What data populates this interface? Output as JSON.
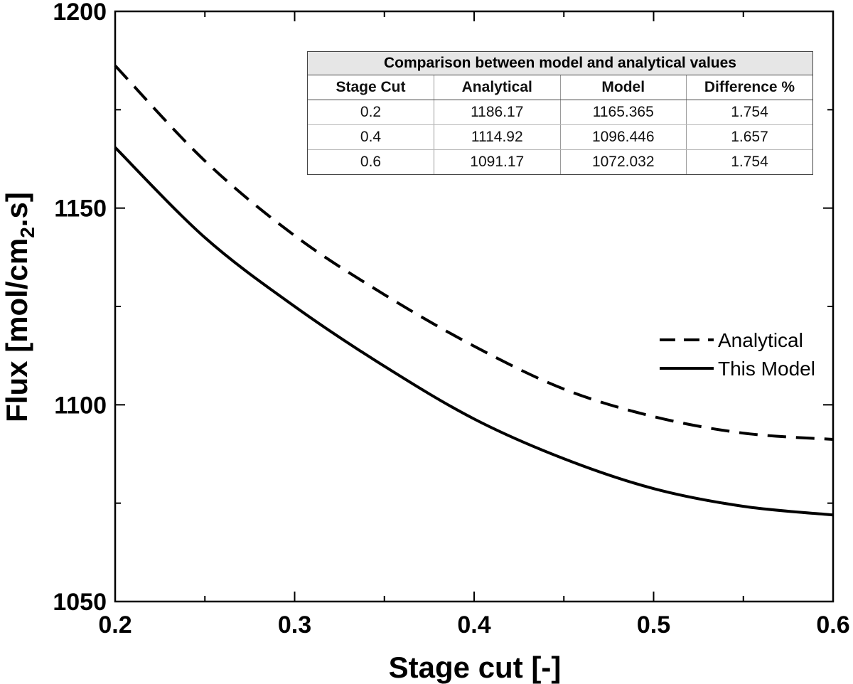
{
  "chart_data": {
    "type": "line",
    "xlabel": "Stage cut [-]",
    "ylabel": "Flux [mol/cm",
    "ylabel_sub": "2",
    "ylabel_tail": ".s]",
    "xlim": [
      0.2,
      0.6
    ],
    "ylim": [
      1050,
      1200
    ],
    "x_ticks": [
      0.2,
      0.3,
      0.4,
      0.5,
      0.6
    ],
    "x_tick_labels": [
      "0.2",
      "0.3",
      "0.4",
      "0.5",
      "0.6"
    ],
    "y_ticks": [
      1050,
      1100,
      1150,
      1200
    ],
    "y_tick_labels": [
      "1050",
      "1100",
      "1150",
      "1200"
    ],
    "grid": false,
    "legend_position": "right",
    "series": [
      {
        "name": "Analytical",
        "style": "dashed",
        "color": "#000000",
        "x": [
          0.2,
          0.25,
          0.3,
          0.35,
          0.4,
          0.45,
          0.5,
          0.55,
          0.6
        ],
        "y": [
          1186.2,
          1162.0,
          1143.0,
          1128.0,
          1114.9,
          1104.0,
          1097.0,
          1092.8,
          1091.2
        ]
      },
      {
        "name": "This Model",
        "style": "solid",
        "color": "#000000",
        "x": [
          0.2,
          0.25,
          0.3,
          0.35,
          0.4,
          0.45,
          0.5,
          0.55,
          0.6
        ],
        "y": [
          1165.4,
          1142.5,
          1125.0,
          1109.8,
          1096.4,
          1086.3,
          1078.7,
          1074.2,
          1072.0
        ]
      }
    ]
  },
  "inset_table": {
    "title": "Comparison between model and analytical values",
    "headers": [
      "Stage Cut",
      "Analytical",
      "Model",
      "Difference %"
    ],
    "rows": [
      [
        "0.2",
        "1186.17",
        "1165.365",
        "1.754"
      ],
      [
        "0.4",
        "1114.92",
        "1096.446",
        "1.657"
      ],
      [
        "0.6",
        "1091.17",
        "1072.032",
        "1.754"
      ]
    ]
  }
}
